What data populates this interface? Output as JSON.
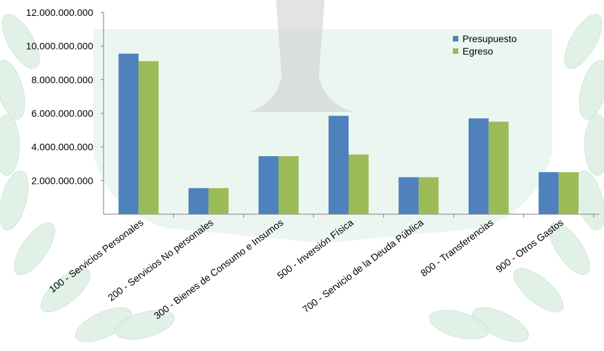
{
  "colors": {
    "presupuesto": "#4F81BD",
    "egreso": "#9BBB59",
    "watermark": "#dcefe4",
    "watermark_stroke": "#c6e4d2",
    "axis": "#7f7f7f"
  },
  "chart_data": {
    "type": "bar",
    "title": "",
    "xlabel": "",
    "ylabel": "",
    "ylim": [
      0,
      12000000000
    ],
    "yticks": [
      2000000000,
      4000000000,
      6000000000,
      8000000000,
      10000000000,
      12000000000
    ],
    "ytick_labels": [
      "2.000.000.000",
      "4.000.000.000",
      "6.000.000.000",
      "8.000.000.000",
      "10.000.000.000",
      "12.000.000.000"
    ],
    "grid": false,
    "legend_position": "top-right",
    "categories": [
      "100 - Servicios Personales",
      "200 - Servicios No personales",
      "300 - Bienes de Consumo e Insumos",
      "500 - Inversión Física",
      "700 - Servicio de la Deuda Pública",
      "800 - Transferencias",
      "900 - Otros Gastos"
    ],
    "series": [
      {
        "name": "Presupuesto",
        "values": [
          9550000000,
          1550000000,
          3450000000,
          5850000000,
          2200000000,
          5700000000,
          2500000000
        ]
      },
      {
        "name": "Egreso",
        "values": [
          9100000000,
          1550000000,
          3450000000,
          3550000000,
          2200000000,
          5500000000,
          2500000000
        ]
      }
    ]
  }
}
